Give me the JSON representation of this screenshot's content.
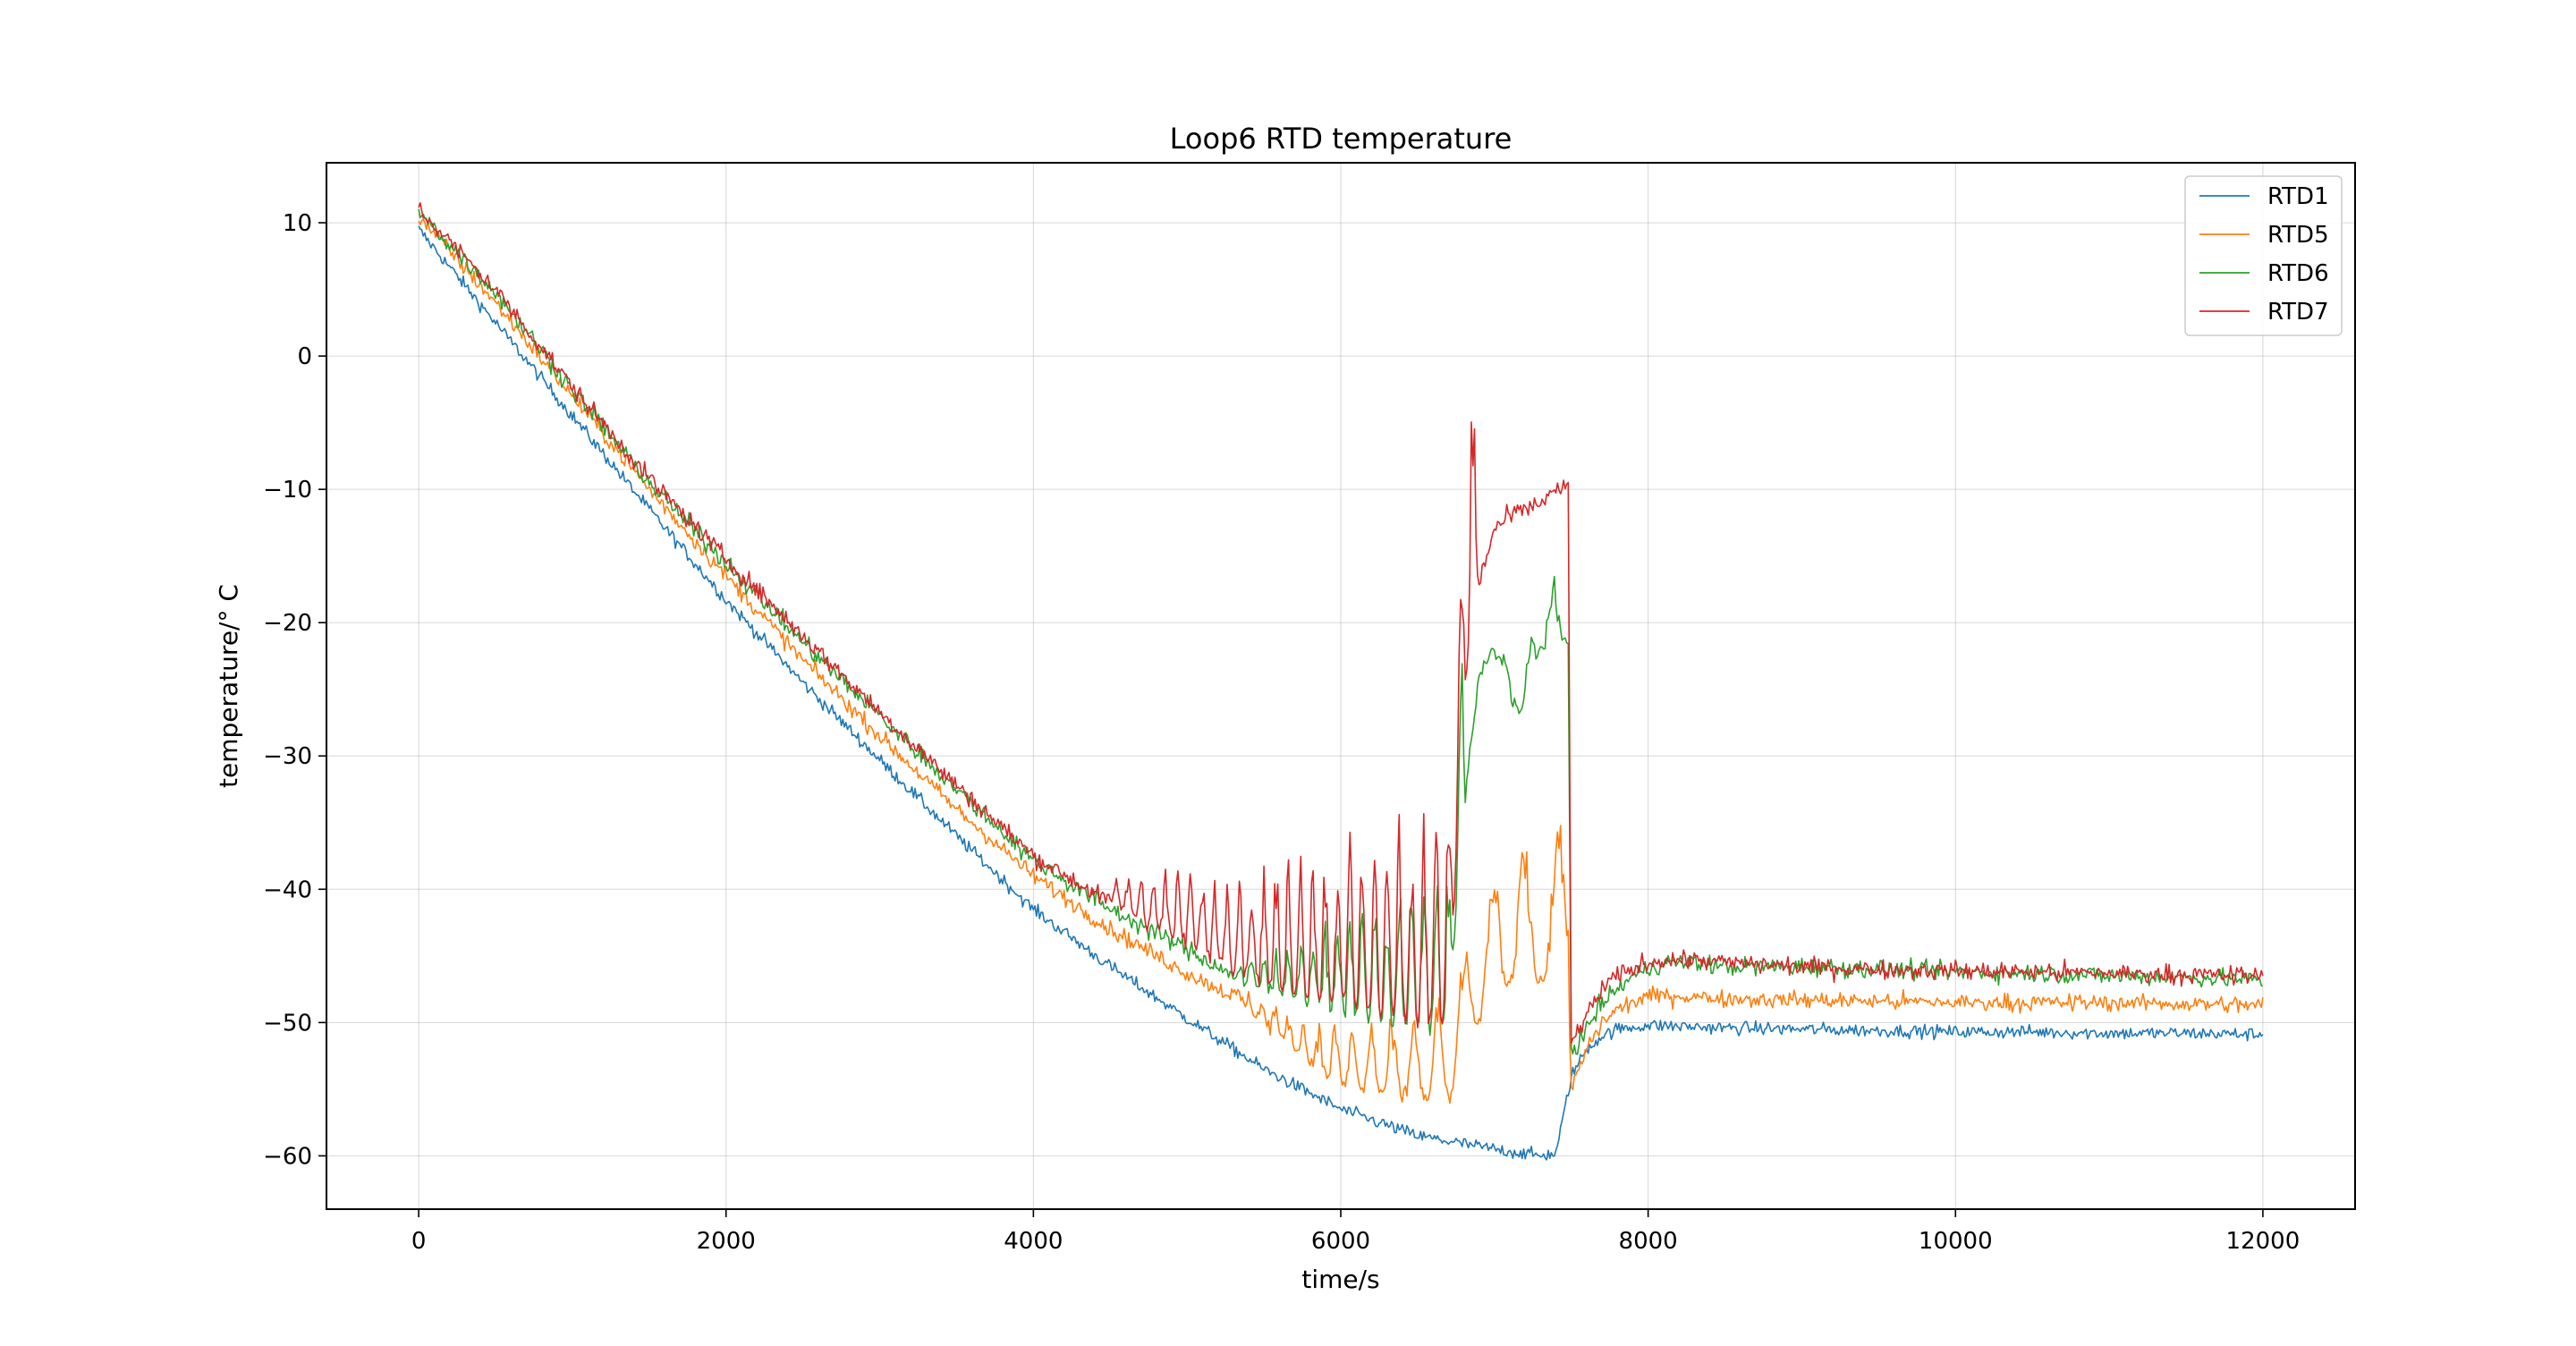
{
  "chart_data": {
    "type": "line",
    "title": "Loop6 RTD temperature",
    "xlabel": "time/s",
    "ylabel": "temperature/$^\\circ C$",
    "ylabel_display": "temperature/° C",
    "xlim": [
      -600,
      12600
    ],
    "ylim": [
      -64,
      14.5
    ],
    "xticks": [
      0,
      2000,
      4000,
      6000,
      8000,
      10000,
      12000
    ],
    "xtick_labels": [
      "0",
      "2000",
      "4000",
      "6000",
      "8000",
      "10000",
      "12000"
    ],
    "yticks": [
      10,
      0,
      -10,
      -20,
      -30,
      -40,
      -50,
      -60
    ],
    "ytick_labels": [
      "10",
      "0",
      "−10",
      "−20",
      "−30",
      "−40",
      "−50",
      "−60"
    ],
    "grid": true,
    "legend_position": "top-right",
    "series": [
      {
        "name": "RTD1",
        "color": "#1f77b4",
        "noise": 0.35,
        "x": [
          0,
          500,
          1000,
          1500,
          2000,
          2500,
          3000,
          3500,
          4000,
          4500,
          5000,
          5500,
          6000,
          6500,
          7000,
          7300,
          7400,
          7450,
          7500,
          7600,
          7700,
          7800,
          8000,
          8500,
          9000,
          9500,
          10000,
          10500,
          11000,
          11500,
          12000
        ],
        "y": [
          9.5,
          2.5,
          -4.5,
          -11.5,
          -18.3,
          -24.5,
          -30.3,
          -36,
          -41.5,
          -45.8,
          -49.7,
          -53.5,
          -56.5,
          -58.5,
          -59.5,
          -60,
          -59.8,
          -57,
          -54,
          -52,
          -51,
          -50.5,
          -50.2,
          -50.4,
          -50.5,
          -50.6,
          -50.7,
          -50.7,
          -50.8,
          -50.8,
          -50.9
        ]
      },
      {
        "name": "RTD5",
        "color": "#ff7f0e",
        "noise": 0.45,
        "x": [
          0,
          500,
          1000,
          1500,
          2000,
          2500,
          3000,
          3500,
          4000,
          4500,
          5000,
          5300,
          5500,
          5700,
          5900,
          6100,
          6300,
          6500,
          6600,
          6700,
          6800,
          6900,
          7000,
          7100,
          7200,
          7300,
          7400,
          7480,
          7500,
          7600,
          7700,
          7800,
          7900,
          8000,
          8200,
          8500,
          9000,
          9500,
          10000,
          10500,
          11000,
          11500,
          12000
        ],
        "y": [
          10.5,
          4,
          -3,
          -10,
          -16.5,
          -22.8,
          -28.5,
          -34,
          -39,
          -43,
          -46.3,
          -48,
          -50,
          -52,
          -54,
          -55,
          -55.5,
          -55.8,
          -56,
          -56,
          -52,
          -50,
          -47,
          -47,
          -47,
          -47,
          -47,
          -47,
          -55,
          -52,
          -50,
          -49,
          -48.5,
          -48,
          -48,
          -48.2,
          -48.3,
          -48.4,
          -48.5,
          -48.5,
          -48.5,
          -48.6,
          -48.7
        ]
      },
      {
        "name": "RTD6",
        "color": "#2ca02c",
        "noise": 0.5,
        "x": [
          0,
          500,
          1000,
          1500,
          2000,
          2500,
          3000,
          3500,
          4000,
          4500,
          5000,
          5300,
          5500,
          5800,
          6000,
          6300,
          6500,
          6700,
          6800,
          6900,
          7000,
          7050,
          7100,
          7200,
          7250,
          7300,
          7350,
          7400,
          7450,
          7480,
          7500,
          7550,
          7600,
          7650,
          7700,
          7800,
          7900,
          8000,
          8100,
          8300,
          8500,
          9000,
          9500,
          10000,
          10500,
          11000,
          11500,
          12000
        ],
        "y": [
          10.8,
          4.8,
          -2.5,
          -9.5,
          -15.5,
          -21.5,
          -27,
          -32.5,
          -37.8,
          -41.5,
          -44.5,
          -46.5,
          -47.5,
          -48.5,
          -49,
          -50,
          -50.5,
          -50.5,
          -34,
          -24,
          -22,
          -24,
          -26,
          -27,
          -24,
          -22,
          -22,
          -21,
          -21.5,
          -21.5,
          -52,
          -51.5,
          -50.5,
          -49.5,
          -48.5,
          -47.5,
          -46.5,
          -46,
          -45.5,
          -45.5,
          -45.8,
          -45.8,
          -46,
          -46.2,
          -46.3,
          -46.5,
          -46.6,
          -46.8
        ]
      },
      {
        "name": "RTD7",
        "color": "#d62728",
        "noise": 0.5,
        "x": [
          0,
          500,
          1000,
          1500,
          2000,
          2500,
          3000,
          3500,
          4000,
          4500,
          5000,
          5300,
          5500,
          5800,
          6000,
          6300,
          6500,
          6700,
          6750,
          6800,
          6850,
          6900,
          6950,
          7000,
          7100,
          7200,
          7300,
          7400,
          7450,
          7480,
          7500,
          7550,
          7600,
          7650,
          7700,
          7800,
          7900,
          8000,
          8100,
          8300,
          8500,
          9000,
          9500,
          10000,
          10500,
          11000,
          11500,
          12000
        ],
        "y": [
          11,
          5,
          -2.3,
          -9.2,
          -15.2,
          -21,
          -26.7,
          -32.2,
          -37.5,
          -41,
          -44.2,
          -46,
          -47,
          -48,
          -48.5,
          -49.5,
          -50,
          -50,
          -38,
          -26,
          -20,
          -17,
          -15,
          -13,
          -12,
          -11.5,
          -11,
          -10,
          -10,
          -10,
          -51.5,
          -50.5,
          -49.5,
          -48.5,
          -47.5,
          -46.5,
          -46,
          -45.5,
          -45.3,
          -45.3,
          -45.5,
          -45.8,
          -46,
          -46.1,
          -46.2,
          -46.3,
          -46.4,
          -46.5
        ]
      }
    ],
    "oscillations": [
      {
        "series": "RTD7",
        "x_start": 4500,
        "x_end": 6900,
        "amplitude_start": 2,
        "amplitude_end": 20,
        "period_start": 80,
        "period_end": 80
      },
      {
        "series": "RTD6",
        "x_start": 5300,
        "x_end": 6800,
        "amplitude_start": 0.5,
        "amplitude_end": 16,
        "period_start": 80,
        "period_end": 80
      },
      {
        "series": "RTD5",
        "x_start": 5300,
        "x_end": 7480,
        "amplitude_start": 0.5,
        "amplitude_end": 13,
        "period_start": 70,
        "period_end": 130
      },
      {
        "series": "RTD6",
        "x_start": 7000,
        "x_end": 7450,
        "amplitude_start": 2,
        "amplitude_end": 6,
        "period_start": 150,
        "period_end": 150
      }
    ]
  }
}
